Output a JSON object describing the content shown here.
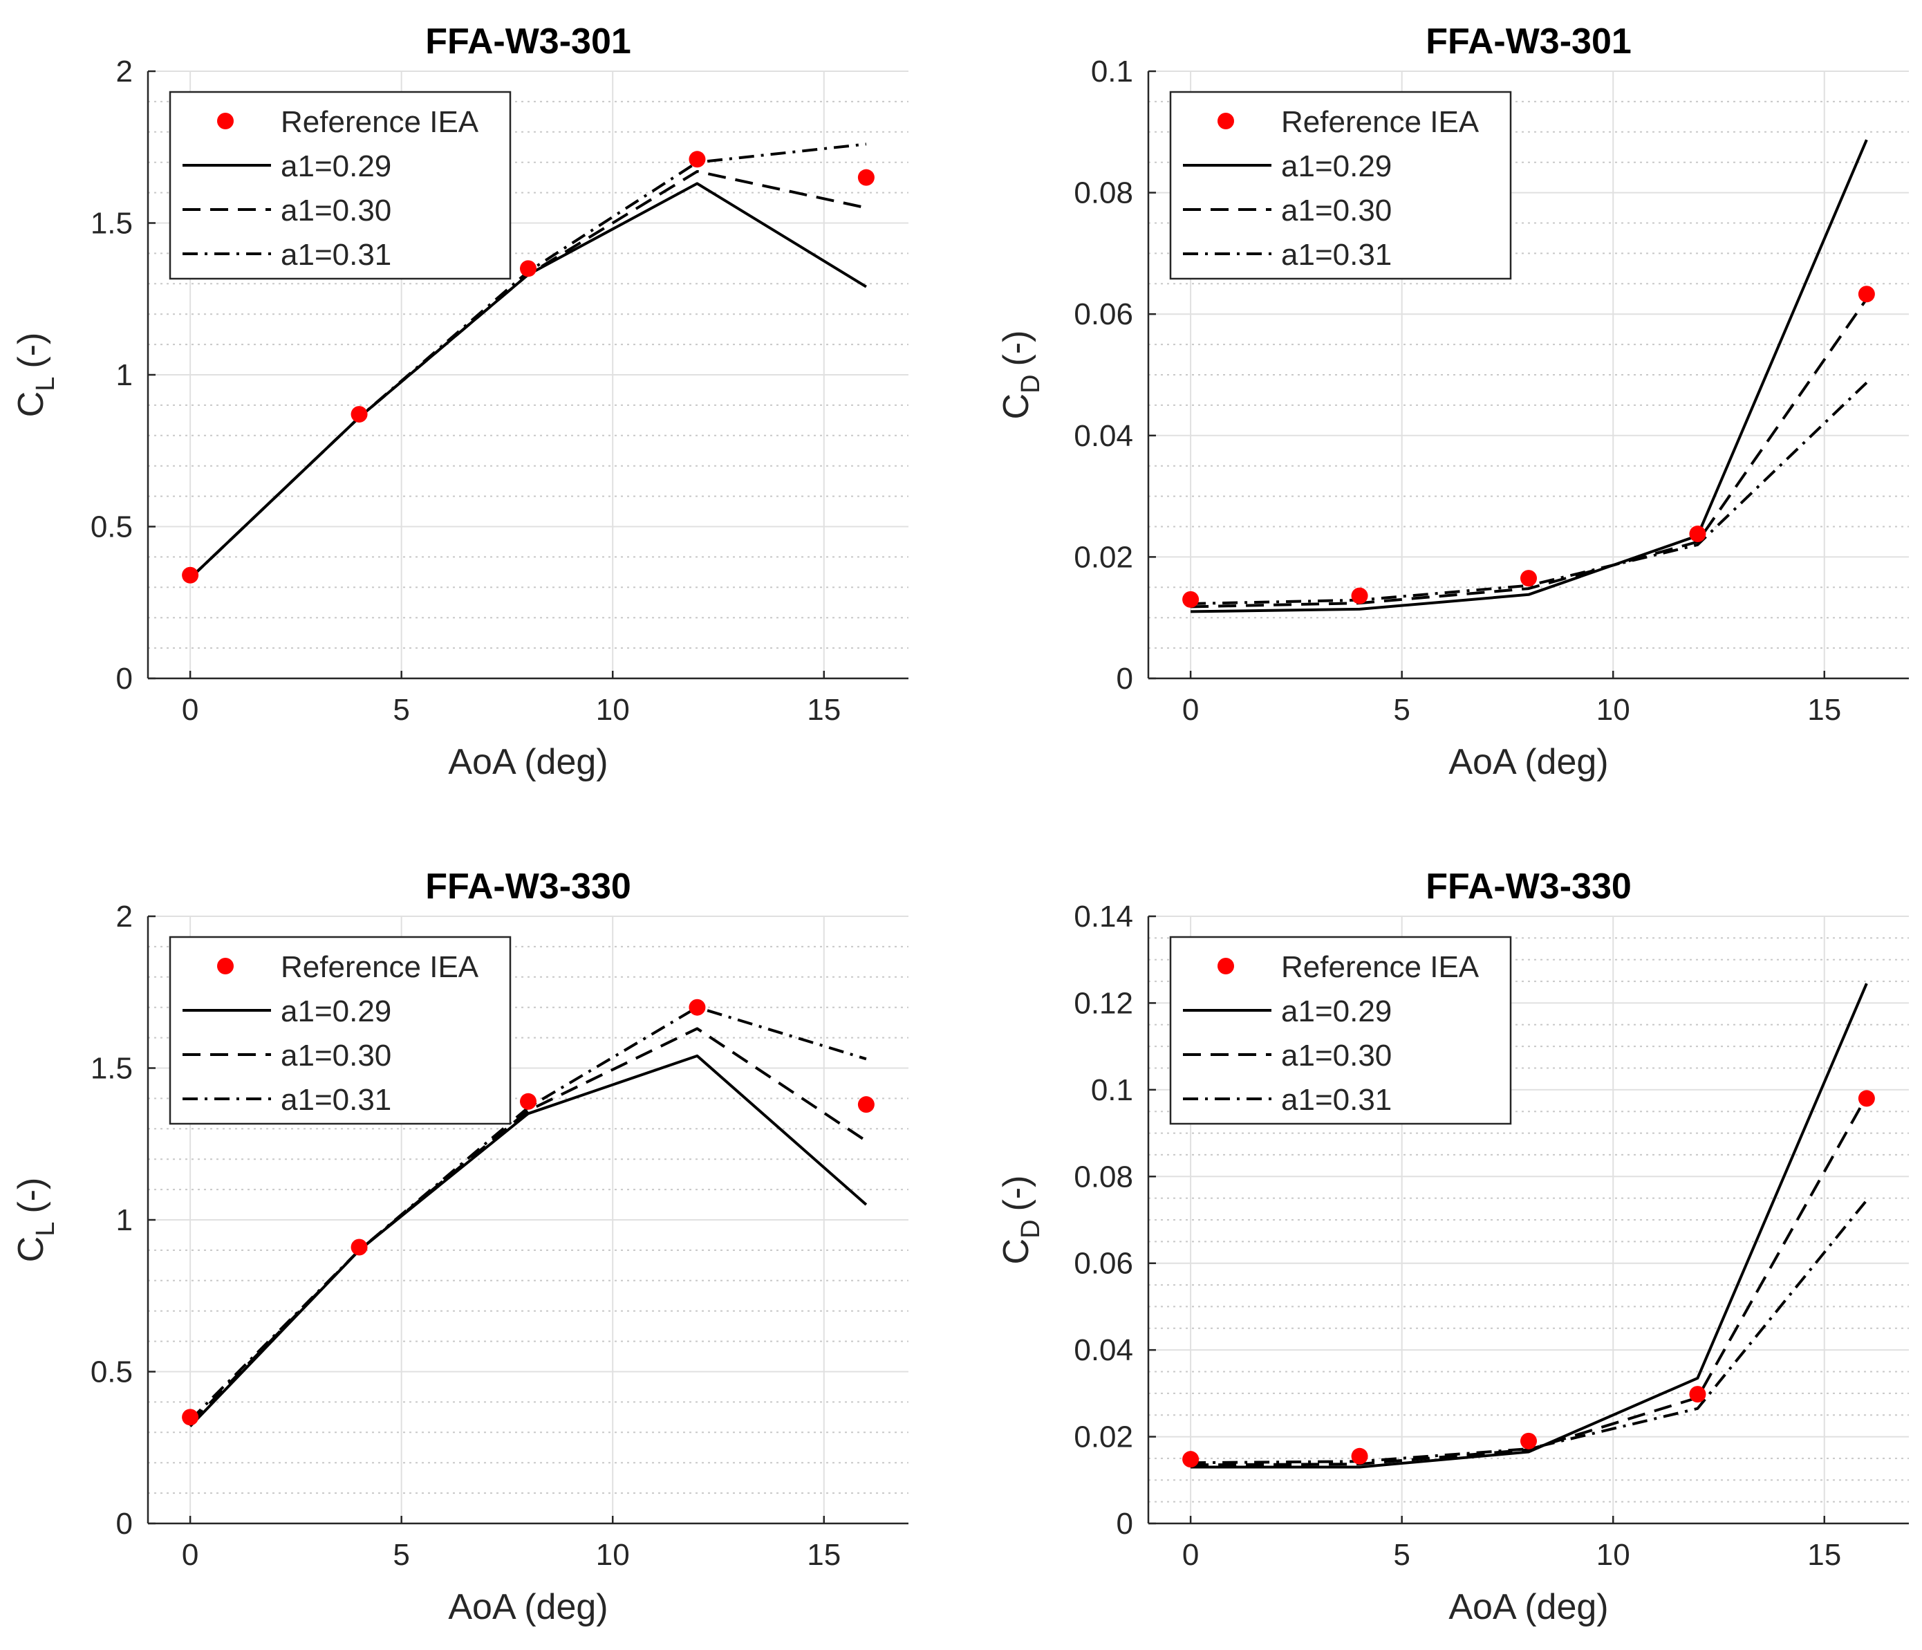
{
  "chart_data": [
    {
      "type": "line",
      "title": "FFA-W3-301",
      "xlabel": "AoA (deg)",
      "ylabel_main": "C",
      "ylabel_sub": "L",
      "ylabel_unit": "(-)",
      "xlim": [
        -1,
        17
      ],
      "ylim": [
        0,
        2
      ],
      "xticks": [
        0,
        5,
        10,
        15
      ],
      "xtick_labels": [
        "0",
        "5",
        "10",
        "15"
      ],
      "yticks": [
        0,
        0.5,
        1,
        1.5,
        2
      ],
      "ytick_labels": [
        "0",
        "0.5",
        "1",
        "1.5",
        "2"
      ],
      "minor_y_step": 0.1,
      "grid": true,
      "legend": "top-left",
      "x": [
        0,
        4,
        8,
        12,
        16
      ],
      "reference": {
        "name": "Reference IEA",
        "values": [
          0.34,
          0.87,
          1.35,
          1.71,
          1.65
        ],
        "color": "#ff0000"
      },
      "series": [
        {
          "name": "a1=0.29",
          "style": "solid",
          "values": [
            0.33,
            0.86,
            1.33,
            1.63,
            1.29
          ]
        },
        {
          "name": "a1=0.30",
          "style": "dashed",
          "values": [
            0.33,
            0.86,
            1.33,
            1.67,
            1.55
          ]
        },
        {
          "name": "a1=0.31",
          "style": "dashdot",
          "values": [
            0.33,
            0.86,
            1.34,
            1.7,
            1.76
          ]
        }
      ]
    },
    {
      "type": "line",
      "title": "FFA-W3-301",
      "xlabel": "AoA (deg)",
      "ylabel_main": "C",
      "ylabel_sub": "D",
      "ylabel_unit": "(-)",
      "xlim": [
        -1,
        17
      ],
      "ylim": [
        0,
        0.1
      ],
      "xticks": [
        0,
        5,
        10,
        15
      ],
      "xtick_labels": [
        "0",
        "5",
        "10",
        "15"
      ],
      "yticks": [
        0,
        0.02,
        0.04,
        0.06,
        0.08,
        0.1
      ],
      "ytick_labels": [
        "0",
        "0.02",
        "0.04",
        "0.06",
        "0.08",
        "0.1"
      ],
      "minor_y_step": 0.005,
      "grid": true,
      "legend": "top-left",
      "x": [
        0,
        4,
        8,
        12,
        16
      ],
      "reference": {
        "name": "Reference IEA",
        "values": [
          0.013,
          0.0136,
          0.0165,
          0.0238,
          0.0633
        ],
        "color": "#ff0000"
      },
      "series": [
        {
          "name": "a1=0.29",
          "style": "solid",
          "values": [
            0.011,
            0.0114,
            0.0138,
            0.0235,
            0.0887
          ]
        },
        {
          "name": "a1=0.30",
          "style": "dashed",
          "values": [
            0.0118,
            0.0124,
            0.0148,
            0.0225,
            0.0625
          ]
        },
        {
          "name": "a1=0.31",
          "style": "dashdot",
          "values": [
            0.0123,
            0.0129,
            0.0153,
            0.022,
            0.0487
          ]
        }
      ]
    },
    {
      "type": "line",
      "title": "FFA-W3-330",
      "xlabel": "AoA (deg)",
      "ylabel_main": "C",
      "ylabel_sub": "L",
      "ylabel_unit": "(-)",
      "xlim": [
        -1,
        17
      ],
      "ylim": [
        0,
        2
      ],
      "xticks": [
        0,
        5,
        10,
        15
      ],
      "xtick_labels": [
        "0",
        "5",
        "10",
        "15"
      ],
      "yticks": [
        0,
        0.5,
        1,
        1.5,
        2
      ],
      "ytick_labels": [
        "0",
        "0.5",
        "1",
        "1.5",
        "2"
      ],
      "minor_y_step": 0.1,
      "grid": true,
      "legend": "top-left",
      "x": [
        0,
        4,
        8,
        12,
        16
      ],
      "reference": {
        "name": "Reference IEA",
        "values": [
          0.35,
          0.91,
          1.39,
          1.7,
          1.38
        ],
        "color": "#ff0000"
      },
      "series": [
        {
          "name": "a1=0.29",
          "style": "solid",
          "values": [
            0.32,
            0.9,
            1.35,
            1.54,
            1.05
          ]
        },
        {
          "name": "a1=0.30",
          "style": "dashed",
          "values": [
            0.33,
            0.9,
            1.36,
            1.63,
            1.26
          ]
        },
        {
          "name": "a1=0.31",
          "style": "dashdot",
          "values": [
            0.34,
            0.9,
            1.37,
            1.7,
            1.53
          ]
        }
      ]
    },
    {
      "type": "line",
      "title": "FFA-W3-330",
      "xlabel": "AoA (deg)",
      "ylabel_main": "C",
      "ylabel_sub": "D",
      "ylabel_unit": "(-)",
      "xlim": [
        -1,
        17
      ],
      "ylim": [
        0,
        0.14
      ],
      "xticks": [
        0,
        5,
        10,
        15
      ],
      "xtick_labels": [
        "0",
        "5",
        "10",
        "15"
      ],
      "yticks": [
        0,
        0.02,
        0.04,
        0.06,
        0.08,
        0.1,
        0.12,
        0.14
      ],
      "ytick_labels": [
        "0",
        "0.02",
        "0.04",
        "0.06",
        "0.08",
        "0.1",
        "0.12",
        "0.14"
      ],
      "minor_y_step": 0.005,
      "grid": true,
      "legend": "top-left",
      "x": [
        0,
        4,
        8,
        12,
        16
      ],
      "reference": {
        "name": "Reference IEA",
        "values": [
          0.0148,
          0.0155,
          0.019,
          0.0298,
          0.098
        ],
        "color": "#ff0000"
      },
      "series": [
        {
          "name": "a1=0.29",
          "style": "solid",
          "values": [
            0.013,
            0.013,
            0.0165,
            0.0335,
            0.1245
          ]
        },
        {
          "name": "a1=0.30",
          "style": "dashed",
          "values": [
            0.0135,
            0.0137,
            0.017,
            0.029,
            0.0985
          ]
        },
        {
          "name": "a1=0.31",
          "style": "dashdot",
          "values": [
            0.014,
            0.0143,
            0.0172,
            0.0265,
            0.0745
          ]
        }
      ]
    }
  ]
}
